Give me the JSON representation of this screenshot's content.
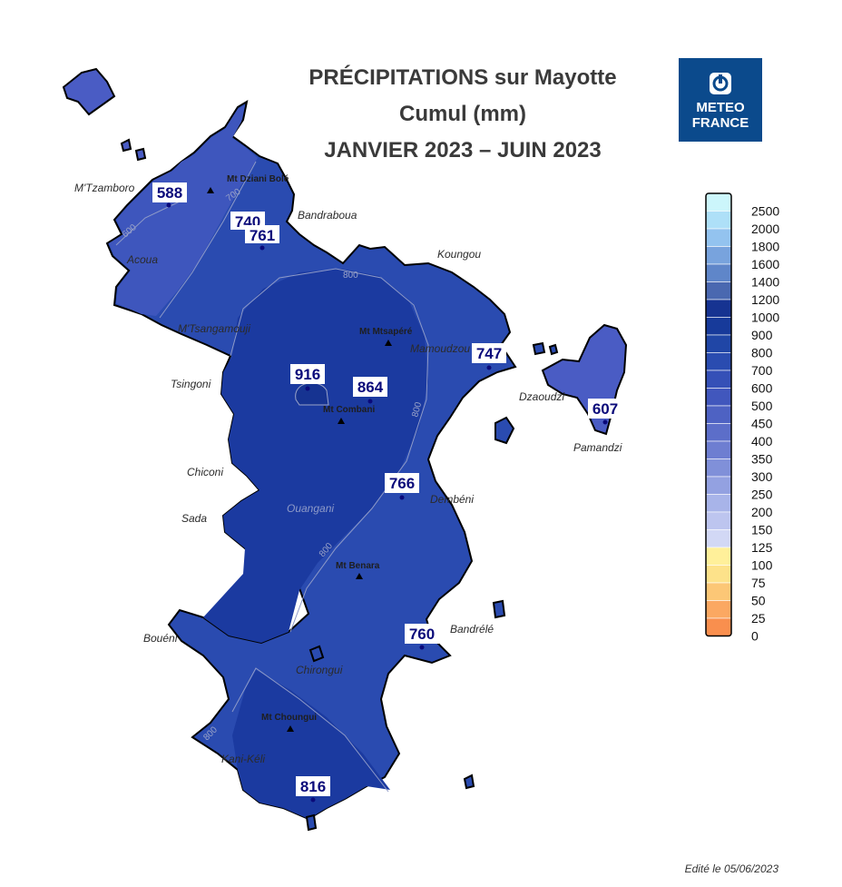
{
  "title": {
    "line1": "PRÉCIPITATIONS sur Mayotte",
    "line2": "Cumul (mm)",
    "line3": "JANVIER 2023 – JUIN 2023"
  },
  "logo": {
    "line1": "METEO",
    "line2": "FRANCE"
  },
  "edit_note": "Edité le 05/06/2023",
  "places": [
    "M'Tzamboro",
    "Acoua",
    "Bandraboua",
    "Koungou",
    "M'Tsangamouji",
    "Mamoudzou",
    "Tsingoni",
    "Dzaoudzi",
    "Pamandzi",
    "Chiconi",
    "Sada",
    "Ouangani",
    "Dembéni",
    "Bouéni",
    "Chirongui",
    "Bandrélé",
    "Kani-Kéli"
  ],
  "mountains": [
    "Mt Dziani Bolé",
    "Mt Mtsapéré",
    "Mt Combani",
    "Mt Benara",
    "Mt Choungui"
  ],
  "station_values": [
    "588",
    "740",
    "761",
    "916",
    "864",
    "747",
    "607",
    "766",
    "760",
    "816"
  ],
  "isolines": [
    "600",
    "700",
    "800",
    "900"
  ],
  "legend": {
    "labels": [
      "2500",
      "2000",
      "1800",
      "1600",
      "1400",
      "1200",
      "1000",
      "900",
      "800",
      "700",
      "600",
      "500",
      "450",
      "400",
      "350",
      "300",
      "250",
      "200",
      "150",
      "125",
      "100",
      "75",
      "50",
      "25",
      "0"
    ],
    "colors": [
      "#ccf6fb",
      "#aee0f8",
      "#93c3ef",
      "#78a3dd",
      "#5f86c9",
      "#4a68b0",
      "#163391",
      "#173a9a",
      "#2046a6",
      "#2a4cb0",
      "#3550b7",
      "#4157bd",
      "#4e62c3",
      "#5c6ec9",
      "#6e7ed1",
      "#8090d9",
      "#93a1e1",
      "#a8b4e9",
      "#bdc5ef",
      "#d2d8f5",
      "#fff09a",
      "#fde28a",
      "#fcc776",
      "#fba862",
      "#f98f4e"
    ]
  }
}
